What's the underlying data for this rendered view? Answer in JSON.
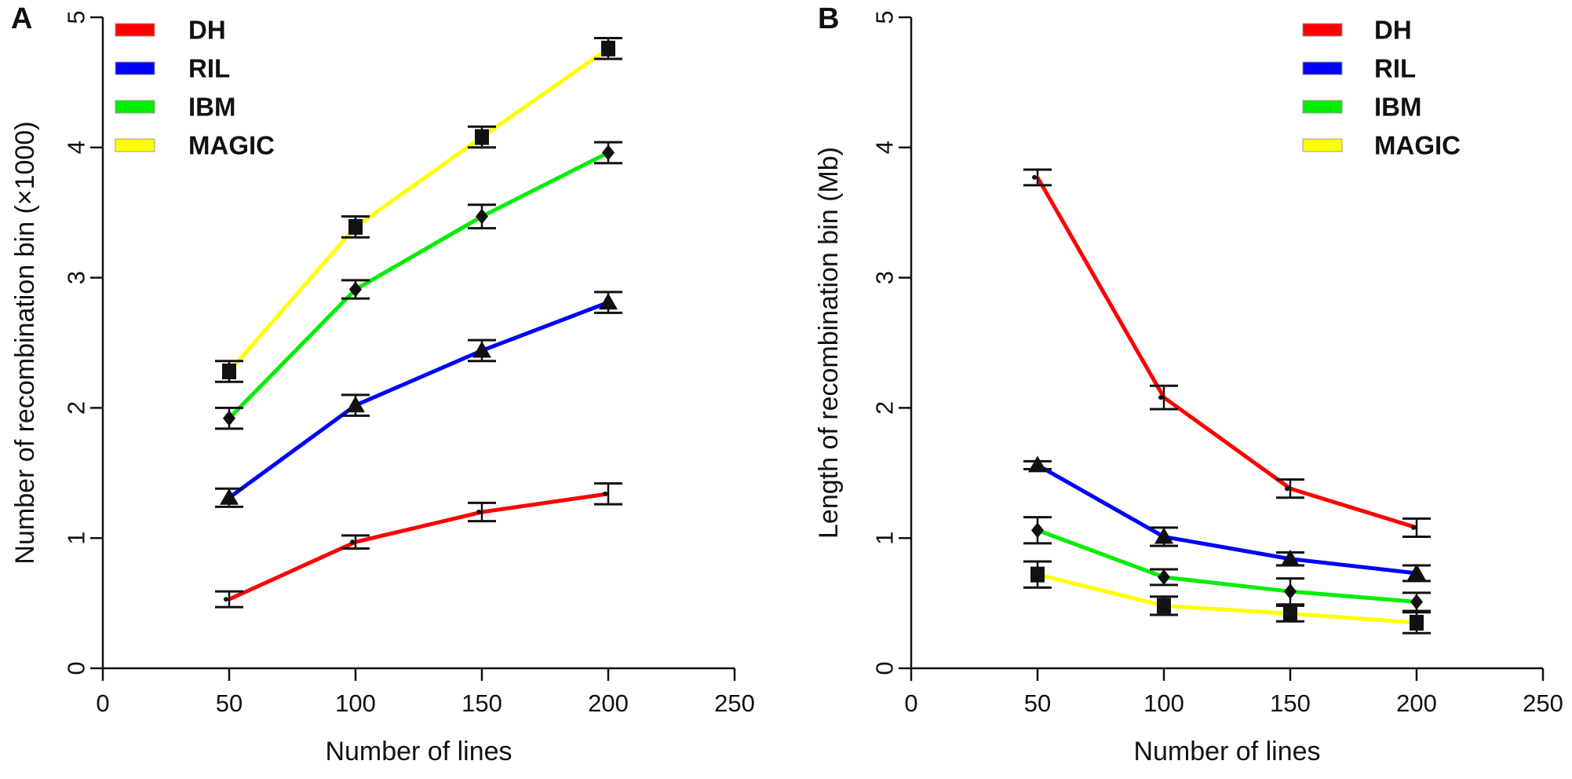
{
  "chart_data": [
    {
      "type": "line",
      "panel": "A",
      "xlabel": "Number of lines",
      "ylabel": "Number of recombination bin (×1000)",
      "xlim": [
        0,
        250
      ],
      "ylim": [
        0,
        5
      ],
      "xticks": [
        "0",
        "50",
        "100",
        "150",
        "200",
        "250"
      ],
      "yticks": [
        "0",
        "1",
        "2",
        "3",
        "4",
        "5"
      ],
      "legend_position": "top-left",
      "x": [
        50,
        100,
        150,
        200
      ],
      "series": [
        {
          "name": "DH",
          "color": "#ff0000",
          "marker": "dot",
          "values": [
            0.53,
            0.97,
            1.2,
            1.34
          ],
          "error": [
            0.06,
            0.05,
            0.07,
            0.08
          ]
        },
        {
          "name": "RIL",
          "color": "#0000ff",
          "marker": "triangle",
          "values": [
            1.31,
            2.02,
            2.44,
            2.81
          ],
          "error": [
            0.07,
            0.08,
            0.08,
            0.08
          ]
        },
        {
          "name": "IBM",
          "color": "#00ee00",
          "marker": "diamond",
          "values": [
            1.92,
            2.91,
            3.47,
            3.96
          ],
          "error": [
            0.08,
            0.07,
            0.09,
            0.08
          ]
        },
        {
          "name": "MAGIC",
          "color": "#ffff00",
          "marker": "square",
          "values": [
            2.28,
            3.39,
            4.08,
            4.76
          ],
          "error": [
            0.08,
            0.08,
            0.08,
            0.08
          ]
        }
      ]
    },
    {
      "type": "line",
      "panel": "B",
      "xlabel": "Number of lines",
      "ylabel": "Length of recombination bin (Mb)",
      "xlim": [
        0,
        250
      ],
      "ylim": [
        0,
        5
      ],
      "xticks": [
        "0",
        "50",
        "100",
        "150",
        "200",
        "250"
      ],
      "yticks": [
        "0",
        "1",
        "2",
        "3",
        "4",
        "5"
      ],
      "legend_position": "top-right",
      "x": [
        50,
        100,
        150,
        200
      ],
      "series": [
        {
          "name": "DH",
          "color": "#ff0000",
          "marker": "dot",
          "values": [
            3.77,
            2.08,
            1.38,
            1.08
          ],
          "error": [
            0.06,
            0.09,
            0.07,
            0.07
          ]
        },
        {
          "name": "RIL",
          "color": "#0000ff",
          "marker": "triangle",
          "values": [
            1.56,
            1.01,
            0.84,
            0.73
          ],
          "error": [
            0.03,
            0.07,
            0.05,
            0.06
          ]
        },
        {
          "name": "IBM",
          "color": "#00ee00",
          "marker": "diamond",
          "values": [
            1.06,
            0.7,
            0.59,
            0.51
          ],
          "error": [
            0.1,
            0.06,
            0.1,
            0.07
          ]
        },
        {
          "name": "MAGIC",
          "color": "#ffff00",
          "marker": "square",
          "values": [
            0.72,
            0.48,
            0.42,
            0.35
          ],
          "error": [
            0.1,
            0.07,
            0.06,
            0.08
          ]
        }
      ]
    }
  ]
}
